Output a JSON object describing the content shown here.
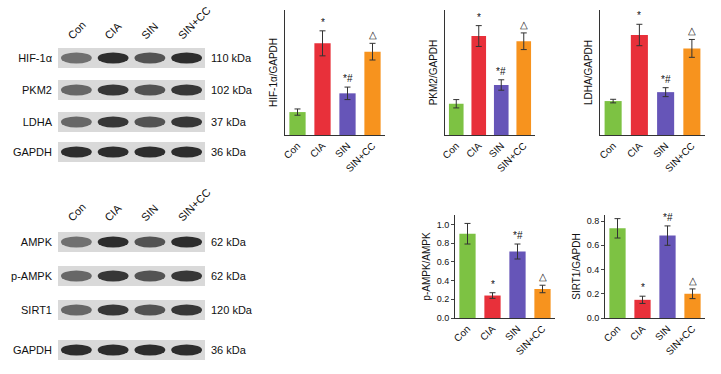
{
  "chart_data": [
    {
      "type": "bar",
      "ylabel": "HIF-1α/GAPDH",
      "categories": [
        "Con",
        "CIA",
        "SIN",
        "SIN+CC"
      ],
      "values": [
        0.22,
        0.88,
        0.4,
        0.8
      ],
      "errors": [
        0.03,
        0.12,
        0.06,
        0.08
      ],
      "colors": [
        "#7dc243",
        "#e8303a",
        "#6655b8",
        "#f7931e"
      ],
      "ylim": [
        0,
        1.2
      ],
      "tick_labels": "x",
      "annotations": [
        {
          "category": "CIA",
          "text": "*"
        },
        {
          "category": "SIN",
          "text": "*#"
        },
        {
          "category": "SIN+CC",
          "text": "△"
        }
      ]
    },
    {
      "type": "bar",
      "ylabel": "PKM2/GAPDH",
      "categories": [
        "Con",
        "CIA",
        "SIN",
        "SIN+CC"
      ],
      "values": [
        0.3,
        0.95,
        0.48,
        0.9
      ],
      "errors": [
        0.04,
        0.1,
        0.05,
        0.08
      ],
      "colors": [
        "#7dc243",
        "#e8303a",
        "#6655b8",
        "#f7931e"
      ],
      "ylim": [
        0,
        1.2
      ],
      "tick_labels": "x",
      "annotations": [
        {
          "category": "CIA",
          "text": "*"
        },
        {
          "category": "SIN",
          "text": "*#"
        },
        {
          "category": "SIN+CC",
          "text": "△"
        }
      ]
    },
    {
      "type": "bar",
      "ylabel": "LDHA/GAPDH",
      "categories": [
        "Con",
        "CIA",
        "SIN",
        "SIN+CC"
      ],
      "values": [
        0.38,
        1.12,
        0.48,
        0.97
      ],
      "errors": [
        0.02,
        0.12,
        0.05,
        0.1
      ],
      "colors": [
        "#7dc243",
        "#e8303a",
        "#6655b8",
        "#f7931e"
      ],
      "ylim": [
        0,
        1.4
      ],
      "tick_labels": "x",
      "annotations": [
        {
          "category": "CIA",
          "text": "*"
        },
        {
          "category": "SIN",
          "text": "*#"
        },
        {
          "category": "SIN+CC",
          "text": "△"
        }
      ]
    },
    {
      "type": "bar",
      "ylabel": "p-AMPK/AMPK",
      "categories": [
        "Con",
        "CIA",
        "SIN",
        "SIN+CC"
      ],
      "values": [
        0.9,
        0.24,
        0.71,
        0.31
      ],
      "errors": [
        0.11,
        0.03,
        0.08,
        0.04
      ],
      "colors": [
        "#7dc243",
        "#e8303a",
        "#6655b8",
        "#f7931e"
      ],
      "ylim": [
        0,
        1.1
      ],
      "yticks": [
        {
          "value": 0,
          "label": "0.0"
        },
        0.2,
        0.4,
        0.6,
        0.8,
        {
          "value": 1,
          "label": "1.0"
        }
      ],
      "annotations": [
        {
          "category": "CIA",
          "text": "*"
        },
        {
          "category": "SIN",
          "text": "*#"
        },
        {
          "category": "SIN+CC",
          "text": "△"
        }
      ]
    },
    {
      "type": "bar",
      "ylabel": "SIRT1/GAPDH",
      "categories": [
        "Con",
        "CIA",
        "SIN",
        "SIN+CC"
      ],
      "values": [
        0.74,
        0.15,
        0.68,
        0.2
      ],
      "errors": [
        0.08,
        0.03,
        0.08,
        0.04
      ],
      "colors": [
        "#7dc243",
        "#e8303a",
        "#6655b8",
        "#f7931e"
      ],
      "ylim": [
        0,
        0.85
      ],
      "yticks": [
        {
          "value": 0,
          "label": "0.0"
        },
        0.2,
        0.4,
        0.6,
        0.8
      ],
      "annotations": [
        {
          "category": "CIA",
          "text": "*"
        },
        {
          "category": "SIN",
          "text": "*#"
        },
        {
          "category": "SIN+CC",
          "text": "△"
        }
      ]
    }
  ],
  "blots": [
    {
      "lanes": [
        "Con",
        "CIA",
        "SIN",
        "SIN+CC"
      ],
      "rows": [
        {
          "label": "HIF-1α",
          "size": "110 kDa"
        },
        {
          "label": "PKM2",
          "size": "102 kDa"
        },
        {
          "label": "LDHA",
          "size": "37 kDa"
        },
        {
          "label": "GAPDH",
          "size": "36 kDa"
        }
      ]
    },
    {
      "lanes": [
        "Con",
        "CIA",
        "SIN",
        "SIN+CC"
      ],
      "rows": [
        {
          "label": "AMPK",
          "size": "62 kDa"
        },
        {
          "label": "p-AMPK",
          "size": "62 kDa"
        },
        {
          "label": "SIRT1",
          "size": "120 kDa"
        },
        {
          "label": "GAPDH",
          "size": "36 kDa"
        }
      ]
    }
  ]
}
